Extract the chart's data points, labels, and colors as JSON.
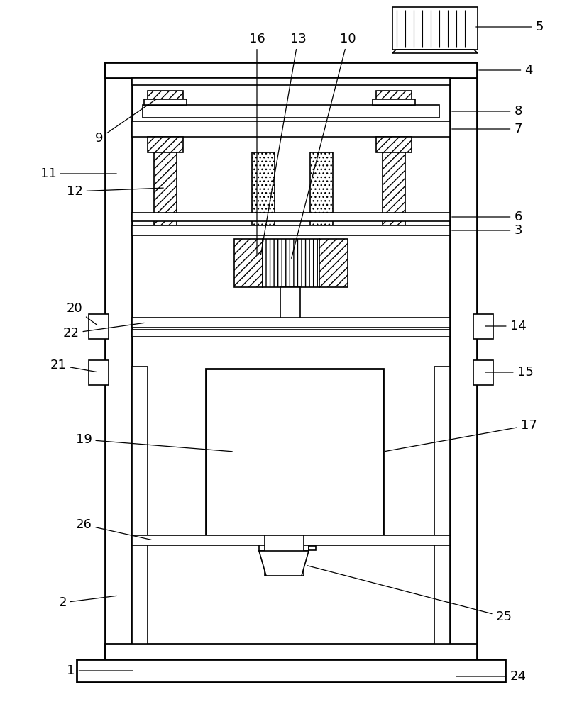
{
  "bg": "#ffffff",
  "lc": "#000000",
  "lw": 1.2,
  "lw2": 2.0,
  "fs": 13,
  "ann_lw": 0.9,
  "fig_w": 8.06,
  "fig_h": 10.0,
  "dpi": 100
}
